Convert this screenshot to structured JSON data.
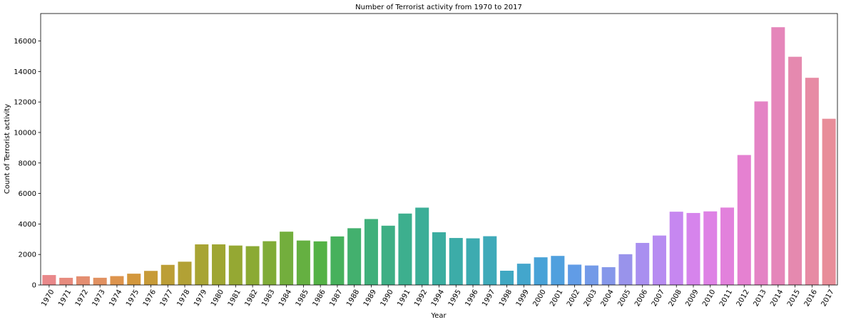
{
  "chart_data": {
    "type": "bar",
    "title": "Number of Terrorist activity from 1970 to 2017",
    "xlabel": "Year",
    "ylabel": "Count of Terrorist activity",
    "ylim": [
      0,
      17800
    ],
    "yticks": [
      0,
      2000,
      4000,
      6000,
      8000,
      10000,
      12000,
      14000,
      16000
    ],
    "grid": false,
    "legend": "none",
    "categories": [
      "1970",
      "1971",
      "1972",
      "1973",
      "1974",
      "1975",
      "1976",
      "1977",
      "1978",
      "1979",
      "1980",
      "1981",
      "1982",
      "1983",
      "1984",
      "1985",
      "1986",
      "1987",
      "1988",
      "1989",
      "1990",
      "1991",
      "1992",
      "1994",
      "1995",
      "1996",
      "1997",
      "1998",
      "1999",
      "2000",
      "2001",
      "2002",
      "2003",
      "2004",
      "2005",
      "2006",
      "2007",
      "2008",
      "2009",
      "2010",
      "2011",
      "2012",
      "2013",
      "2014",
      "2015",
      "2016",
      "2017"
    ],
    "values": [
      651,
      471,
      568,
      473,
      581,
      740,
      923,
      1319,
      1526,
      2662,
      2662,
      2586,
      2544,
      2870,
      3495,
      2915,
      2860,
      3183,
      3721,
      4324,
      3887,
      4683,
      5071,
      3456,
      3081,
      3058,
      3197,
      934,
      1395,
      1814,
      1906,
      1333,
      1278,
      1166,
      2017,
      2758,
      3242,
      4805,
      4721,
      4826,
      5076,
      8522,
      12036,
      16903,
      14965,
      13587,
      10900
    ],
    "colors": [
      "#e9888a",
      "#e78b7e",
      "#e48e71",
      "#e19161",
      "#dd944d",
      "#d3973c",
      "#c79b38",
      "#bc9e36",
      "#b2a135",
      "#a8a434",
      "#9fa633",
      "#95a833",
      "#8baa34",
      "#80ac38",
      "#73ae3d",
      "#65b041",
      "#54b246",
      "#47b15c",
      "#43b06e",
      "#40b07b",
      "#3eaf85",
      "#3daf8e",
      "#3cae97",
      "#3badA0",
      "#3caca8",
      "#3dabb0",
      "#3faab9",
      "#40a8c2",
      "#43a6cc",
      "#48a2d7",
      "#50a0de",
      "#619ce6",
      "#739ae8",
      "#8597ea",
      "#9993eb",
      "#a98ff0",
      "#b78cf1",
      "#c687f0",
      "#d684ec",
      "#de82e5",
      "#e281dc",
      "#e581d1",
      "#e483c5",
      "#e586ba",
      "#e589af",
      "#e78ba4",
      "#e88d99"
    ]
  }
}
